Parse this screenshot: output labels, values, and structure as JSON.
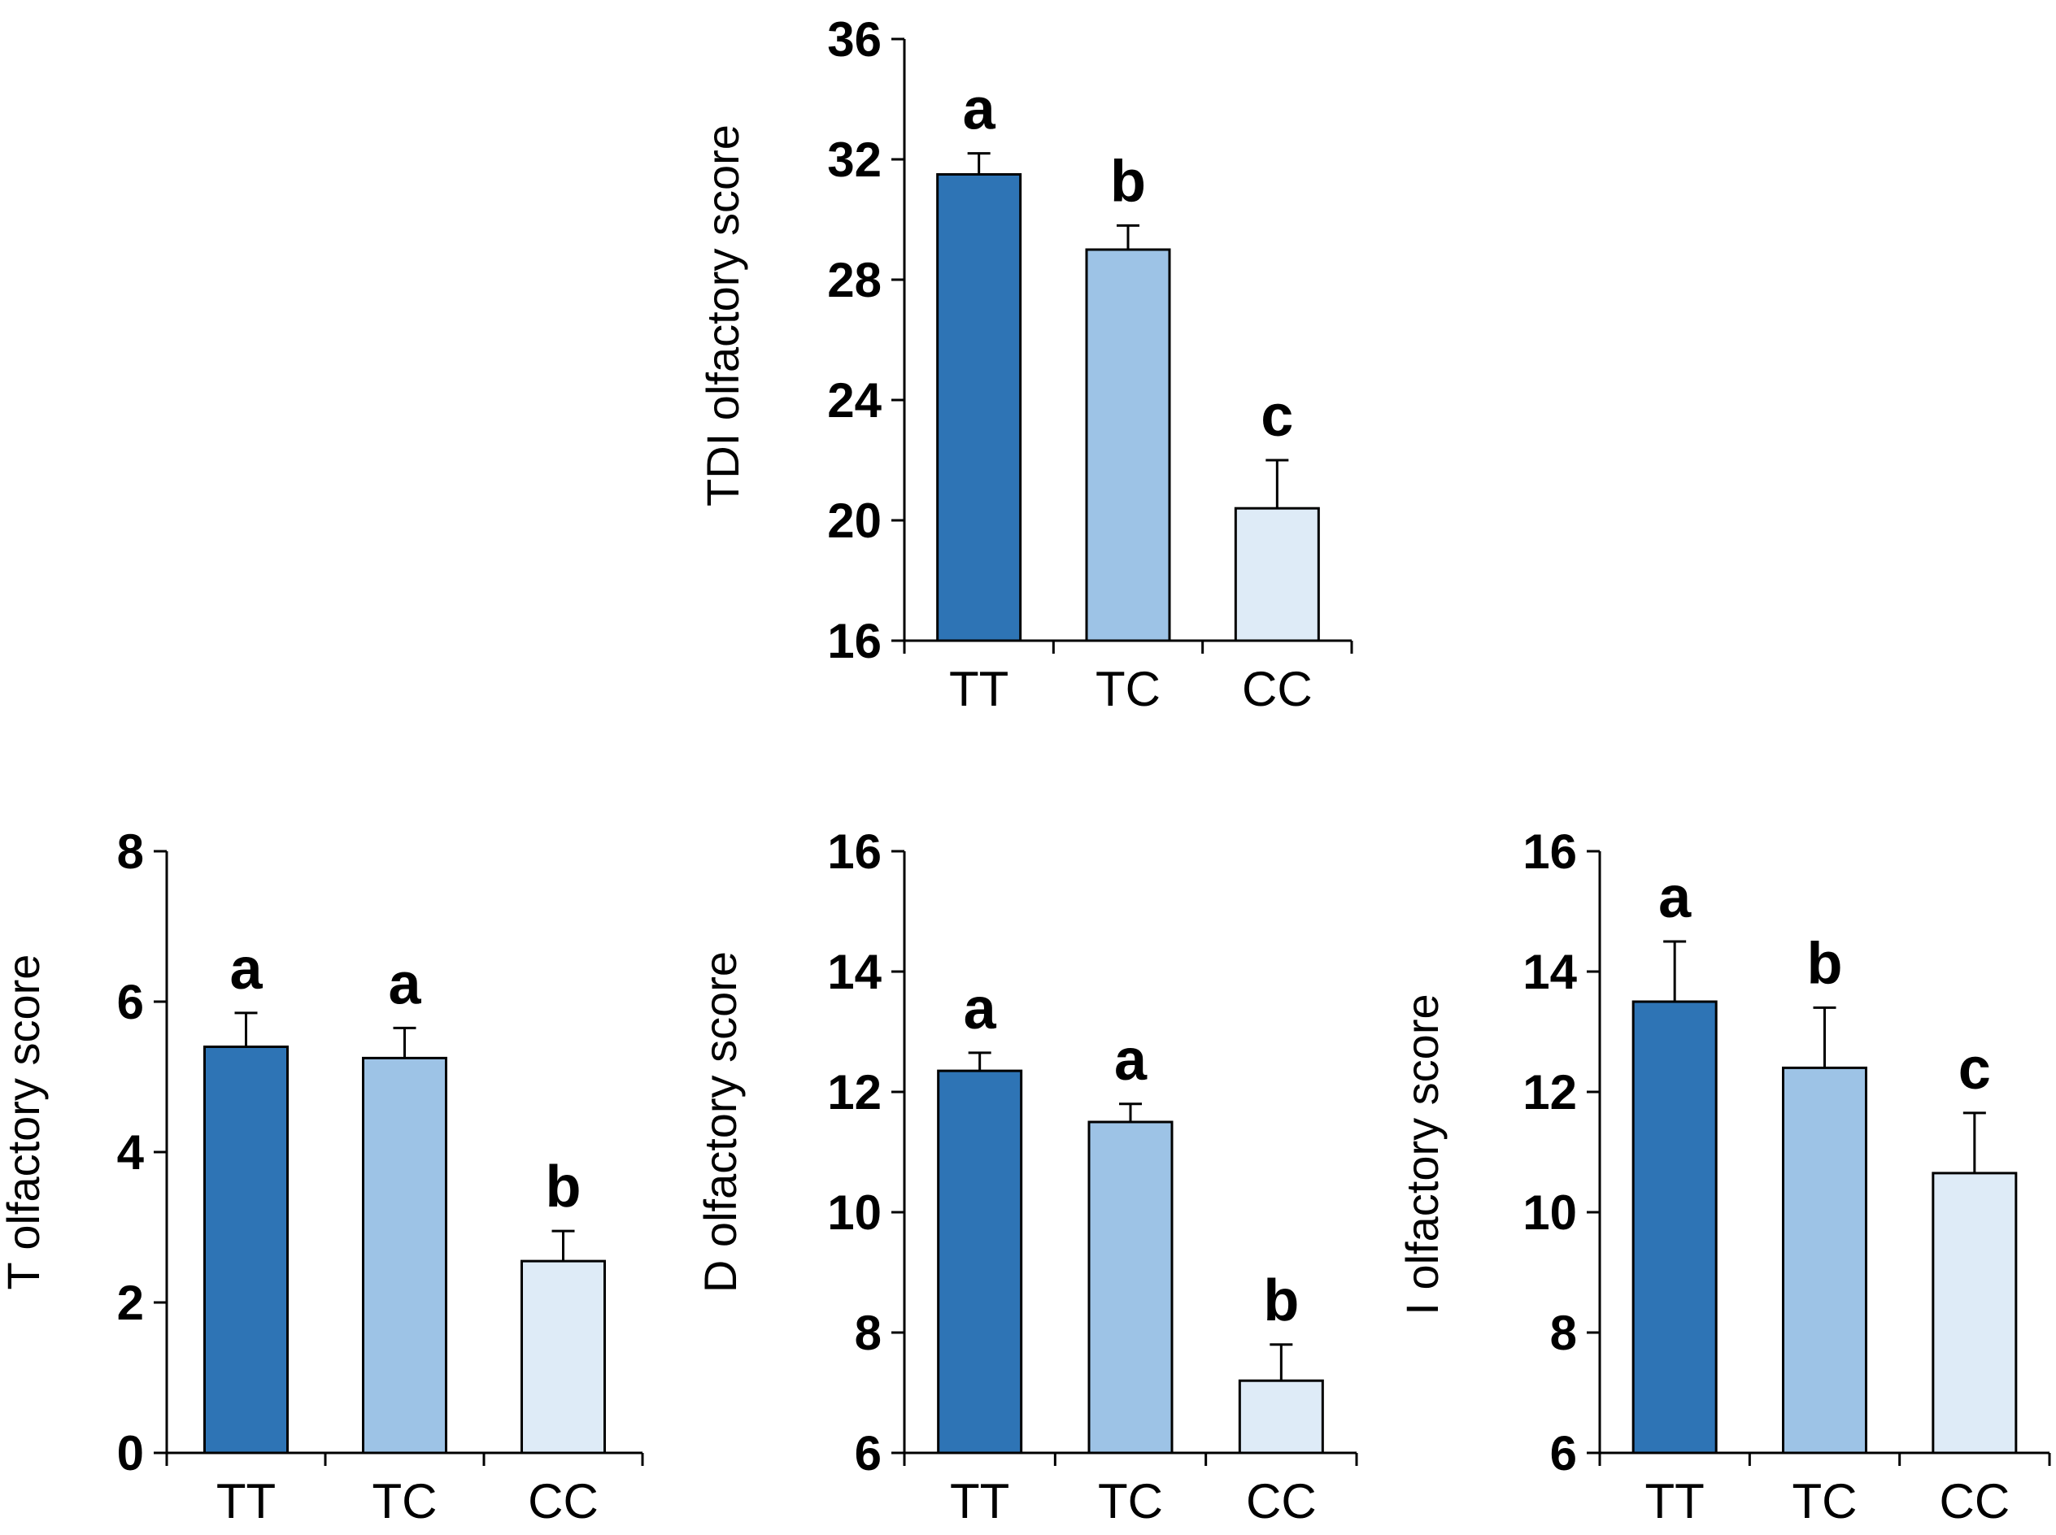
{
  "colors": {
    "TT": "#2E74B5",
    "TC": "#9DC3E6",
    "CC": "#DEEBF7",
    "stroke": "#000000"
  },
  "chart_data": [
    {
      "type": "bar",
      "id": "tdi",
      "ylabel": "TDI olfactory score",
      "ylim": [
        16,
        36
      ],
      "yticks": [
        16,
        20,
        24,
        28,
        32,
        36
      ],
      "categories": [
        "TT",
        "TC",
        "CC"
      ],
      "values": [
        31.5,
        29.0,
        20.4
      ],
      "errors": [
        0.7,
        0.8,
        1.6
      ],
      "significance": [
        "a",
        "b",
        "c"
      ]
    },
    {
      "type": "bar",
      "id": "t",
      "ylabel": "T olfactory score",
      "ylim": [
        0,
        8
      ],
      "yticks": [
        0,
        2,
        4,
        6,
        8
      ],
      "categories": [
        "TT",
        "TC",
        "CC"
      ],
      "values": [
        5.4,
        5.25,
        2.55
      ],
      "errors": [
        0.45,
        0.4,
        0.4
      ],
      "significance": [
        "a",
        "a",
        "b"
      ]
    },
    {
      "type": "bar",
      "id": "d",
      "ylabel": "D olfactory score",
      "ylim": [
        6,
        16
      ],
      "yticks": [
        6,
        8,
        10,
        12,
        14,
        16
      ],
      "categories": [
        "TT",
        "TC",
        "CC"
      ],
      "values": [
        12.35,
        11.5,
        7.2
      ],
      "errors": [
        0.3,
        0.3,
        0.6
      ],
      "significance": [
        "a",
        "a",
        "b"
      ]
    },
    {
      "type": "bar",
      "id": "i",
      "ylabel": "I olfactory score",
      "ylim": [
        6,
        16
      ],
      "yticks": [
        6,
        8,
        10,
        12,
        14,
        16
      ],
      "categories": [
        "TT",
        "TC",
        "CC"
      ],
      "values": [
        13.5,
        12.4,
        10.65
      ],
      "errors": [
        1.0,
        1.0,
        1.0
      ],
      "significance": [
        "a",
        "b",
        "c"
      ]
    }
  ]
}
